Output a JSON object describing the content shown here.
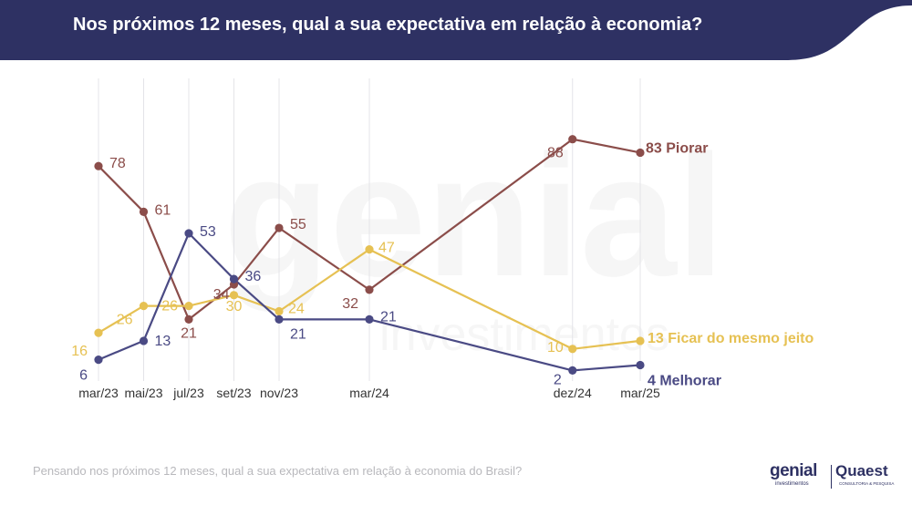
{
  "header": {
    "title": "Nos próximos 12 meses, qual a sua expectativa em relação à economia?"
  },
  "footer": {
    "question": "Pensando nos próximos 12 meses, qual a sua expectativa em relação à economia do Brasil?"
  },
  "logos": {
    "genial": "genial",
    "genial_sub": "investimentos",
    "quaest": "Quaest",
    "quaest_sub": "CONSULTORIA & PESQUISA"
  },
  "watermark": {
    "line1": "genial",
    "line2": "investimentos"
  },
  "colors": {
    "header": "#2e3163",
    "piorar": "#8b4d4a",
    "ficar": "#e6c153",
    "melhorar": "#4a4a84",
    "grid": "#e4e4e8",
    "axis_text": "#333333"
  },
  "chart_data": {
    "type": "line",
    "title": "Nos próximos 12 meses, qual a sua expectativa em relação à economia?",
    "categories": [
      "mar/23",
      "mai/23",
      "jul/23",
      "set/23",
      "nov/23",
      "mar/24",
      "dez/24",
      "mar/25"
    ],
    "x_months": [
      0,
      2,
      4,
      6,
      8,
      12,
      21,
      24
    ],
    "ylim": [
      0,
      100
    ],
    "grid": "vertical",
    "legend": "end-labels",
    "series": [
      {
        "name": "Piorar",
        "end_label": "83 Piorar",
        "color": "#8b4d4a",
        "values": [
          78,
          61,
          21,
          34,
          55,
          32,
          88,
          83
        ]
      },
      {
        "name": "Ficar do mesmo jeito",
        "end_label": "13 Ficar do mesmo jeito",
        "color": "#e6c153",
        "values": [
          16,
          26,
          26,
          30,
          24,
          47,
          10,
          13
        ]
      },
      {
        "name": "Melhorar",
        "end_label": "4 Melhorar",
        "color": "#4a4a84",
        "values": [
          6,
          13,
          53,
          36,
          21,
          21,
          2,
          4
        ]
      }
    ]
  }
}
